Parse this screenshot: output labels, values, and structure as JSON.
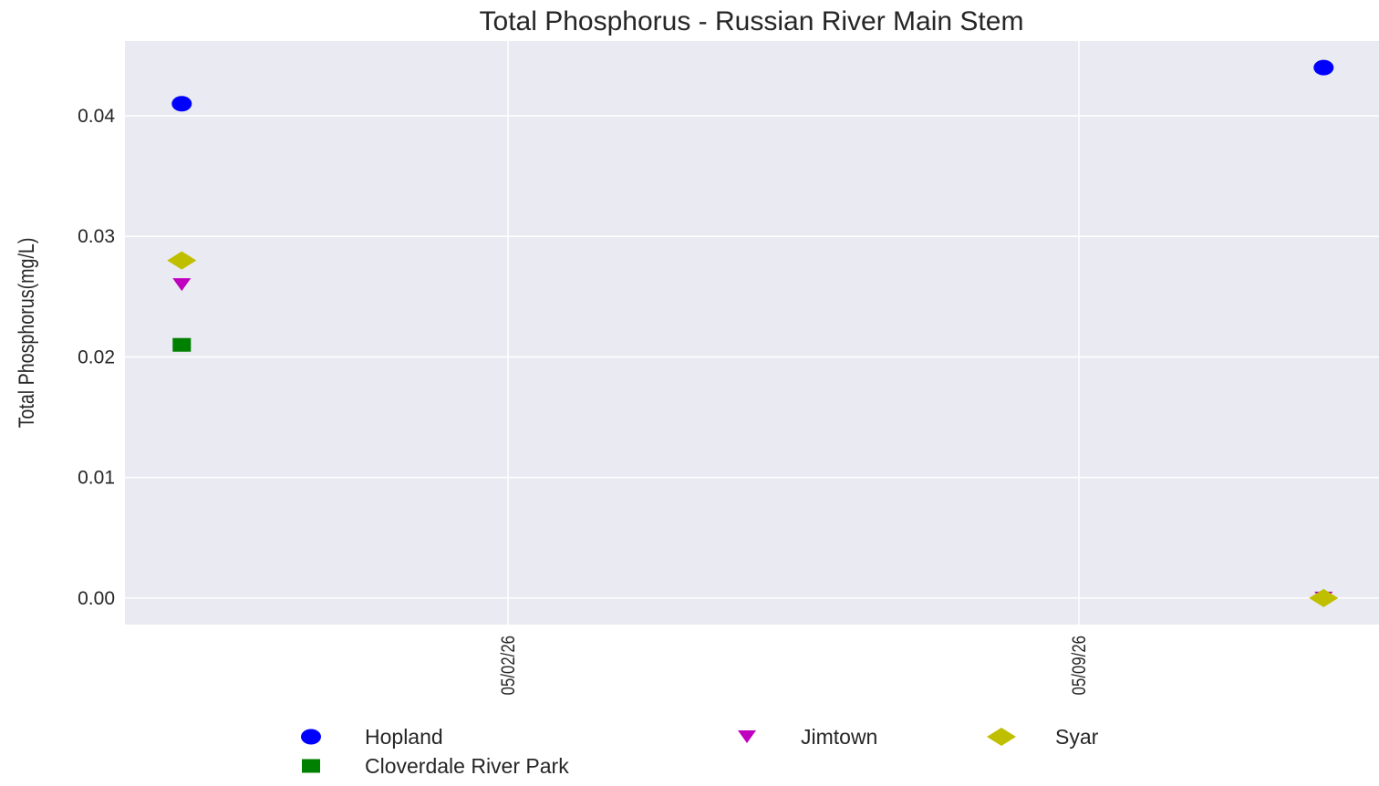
{
  "chart_data": {
    "type": "scatter",
    "title": "Total Phosphorus - Russian River Main Stem",
    "xlabel": "",
    "ylabel": "Total Phosphorus(mg/L)",
    "x_tick_labels": [
      "05/02/26",
      "05/09/26"
    ],
    "y_tick_labels": [
      "0.00",
      "0.01",
      "0.02",
      "0.03",
      "0.04"
    ],
    "y_ticks": [
      0.0,
      0.01,
      0.02,
      0.03,
      0.04
    ],
    "ylim": [
      -0.0022,
      0.0462
    ],
    "x": [
      "04/28/26",
      "05/12/26"
    ],
    "grid": true,
    "legend_position": "bottom",
    "series": [
      {
        "name": "Hopland",
        "marker": "circle",
        "color": "#0000ff",
        "values": [
          0.041,
          0.044
        ]
      },
      {
        "name": "Jimtown",
        "marker": "triangle-down",
        "color": "#bf00bf",
        "values": [
          0.026,
          0.0
        ]
      },
      {
        "name": "Syar",
        "marker": "diamond",
        "color": "#bfbf00",
        "values": [
          0.028,
          0.0
        ]
      },
      {
        "name": "Cloverdale River Park",
        "marker": "square",
        "color": "#008000",
        "values": [
          0.021,
          null
        ]
      }
    ],
    "colors": {
      "plot_background": "#eaeaf2",
      "grid": "#ffffff",
      "text": "#262626"
    }
  }
}
